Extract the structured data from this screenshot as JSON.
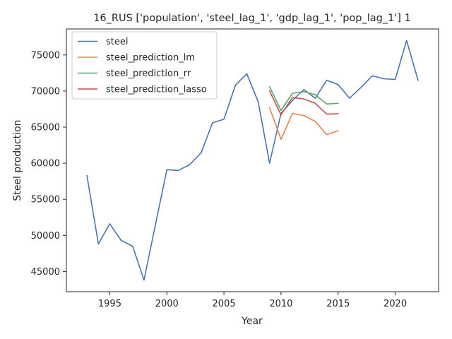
{
  "chart_data": {
    "type": "line",
    "title": "16_RUS ['population', 'steel_lag_1', 'gdp_lag_1', 'pop_lag_1'] 1",
    "xlabel": "Year",
    "ylabel": "Steel production",
    "xlim": [
      1991.2,
      2023.8
    ],
    "ylim": [
      42200,
      78600
    ],
    "xticks": [
      1995,
      2000,
      2005,
      2010,
      2015,
      2020
    ],
    "yticks": [
      45000,
      50000,
      55000,
      60000,
      65000,
      70000,
      75000
    ],
    "grid": false,
    "legend_position": "top-left",
    "series": [
      {
        "name": "steel",
        "color": "#4c72b0",
        "x": [
          1993,
          1994,
          1995,
          1996,
          1997,
          1998,
          1999,
          2000,
          2001,
          2002,
          2003,
          2004,
          2005,
          2006,
          2007,
          2008,
          2009,
          2010,
          2011,
          2012,
          2013,
          2014,
          2015,
          2016,
          2017,
          2018,
          2019,
          2020,
          2021,
          2022
        ],
        "y": [
          58300,
          48800,
          51600,
          49300,
          48500,
          43800,
          51500,
          59100,
          59000,
          59800,
          61450,
          65600,
          66100,
          70800,
          72400,
          68500,
          60000,
          66900,
          68700,
          70200,
          69000,
          71500,
          70900,
          69000,
          70500,
          72100,
          71700,
          71600,
          77000,
          71500
        ]
      },
      {
        "name": "steel_prediction_lm",
        "color": "#dd8452",
        "x": [
          2009,
          2010,
          2011,
          2012,
          2013,
          2014,
          2015
        ],
        "y": [
          67700,
          63300,
          66900,
          66600,
          65800,
          63950,
          64500
        ]
      },
      {
        "name": "steel_prediction_rr",
        "color": "#55a868",
        "x": [
          2009,
          2010,
          2011,
          2012,
          2013,
          2014,
          2015
        ],
        "y": [
          70600,
          67300,
          69700,
          69900,
          69500,
          68200,
          68300
        ]
      },
      {
        "name": "steel_prediction_lasso",
        "color": "#c44e52",
        "x": [
          2009,
          2010,
          2011,
          2012,
          2013,
          2014,
          2015
        ],
        "y": [
          70000,
          66700,
          69100,
          68900,
          68300,
          66800,
          66850
        ]
      }
    ]
  }
}
